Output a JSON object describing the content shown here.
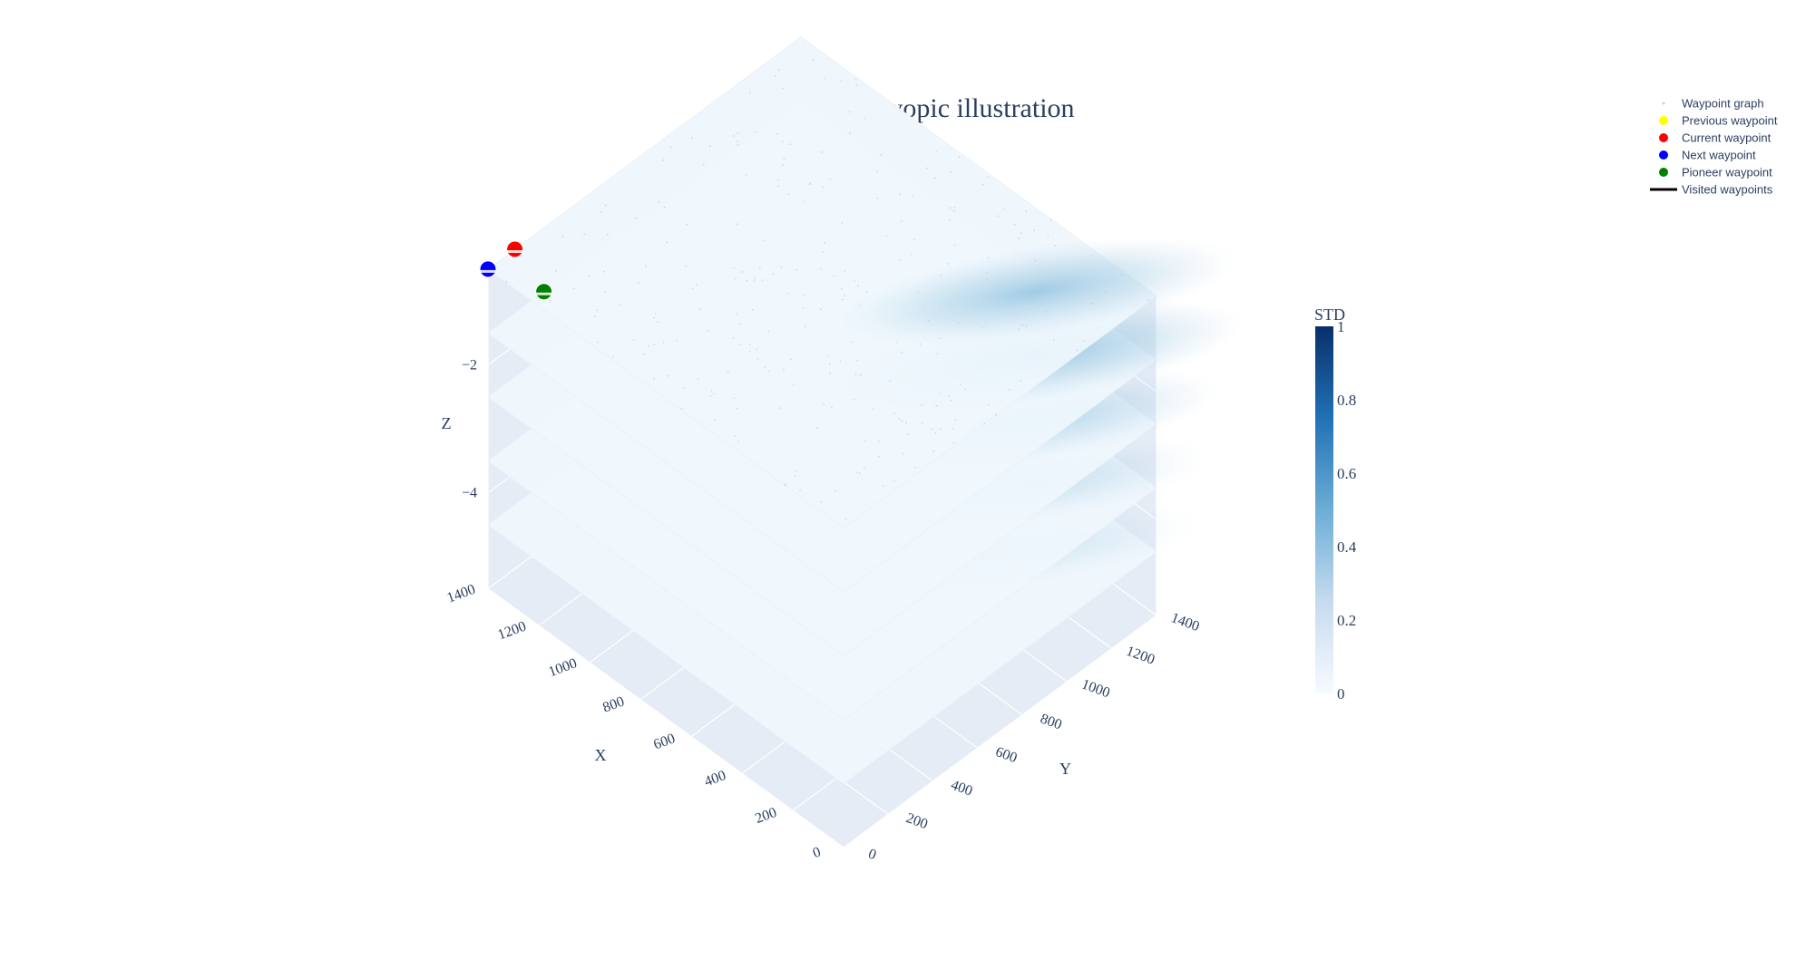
{
  "chart_data": {
    "type": "3d-surface-slices",
    "title": "Adaptive 3D myopic illustration",
    "axes": {
      "x": {
        "label": "X",
        "ticks": [
          0,
          200,
          400,
          600,
          800,
          1000,
          1200,
          1400
        ],
        "range": [
          0,
          1400
        ]
      },
      "y": {
        "label": "Y",
        "ticks": [
          0,
          200,
          400,
          600,
          800,
          1000,
          1200,
          1400
        ],
        "range": [
          0,
          1400
        ]
      },
      "z": {
        "label": "Z",
        "ticks": [
          -2,
          -4
        ],
        "tick_labels": [
          "−2",
          "−4"
        ],
        "range": [
          -5.5,
          -0.5
        ]
      }
    },
    "slices": [
      {
        "z": -0.5,
        "high_region_std": 0.45
      },
      {
        "z": -1.5,
        "high_region_std": 0.5
      },
      {
        "z": -2.5,
        "high_region_std": 0.35
      },
      {
        "z": -3.5,
        "high_region_std": 0.25
      },
      {
        "z": -4.5,
        "high_region_std": 0.18
      }
    ],
    "colorbar": {
      "title": "STD",
      "ticks": [
        0,
        0.2,
        0.4,
        0.6,
        0.8,
        1
      ],
      "tick_labels": [
        "0",
        "0.2",
        "0.4",
        "0.6",
        "0.8",
        "1"
      ],
      "colors": [
        "#f7fbff",
        "#c6dbef",
        "#6baed6",
        "#2171b5",
        "#08306b"
      ]
    },
    "waypoints": [
      {
        "role": "next",
        "x": 1400,
        "y": 0,
        "z": -0.5,
        "color": "#0000ff"
      },
      {
        "role": "current",
        "x": 1400,
        "y": 120,
        "z": -0.5,
        "color": "#ff0000"
      },
      {
        "role": "pioneer",
        "x": 1400,
        "y": 250,
        "z": -1.5,
        "color": "#008000"
      }
    ],
    "legend": {
      "placement": "top-right",
      "entries": [
        {
          "name": "Waypoint graph",
          "symbol": "dot-faint",
          "color": "#c8cfd8"
        },
        {
          "name": "Previous waypoint",
          "symbol": "marker",
          "color": "#ffff00"
        },
        {
          "name": "Current waypoint",
          "symbol": "marker",
          "color": "#ff0000"
        },
        {
          "name": "Next waypoint",
          "symbol": "marker",
          "color": "#0000ff"
        },
        {
          "name": "Pioneer waypoint",
          "symbol": "marker",
          "color": "#008000"
        },
        {
          "name": "Visited waypoints",
          "symbol": "line",
          "color": "#000000"
        }
      ]
    },
    "scene_background": "#e5ecf6",
    "grid_color": "#ffffff"
  }
}
